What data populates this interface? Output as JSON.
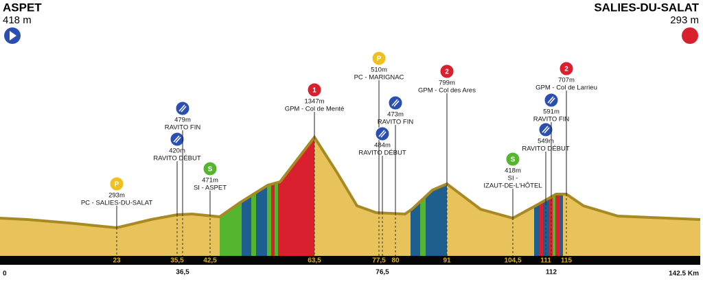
{
  "header": {
    "start_name": "ASPET",
    "start_alt": "418 m",
    "finish_name": "SALIES-DU-SALAT",
    "finish_alt": "293 m"
  },
  "axis": {
    "start": "0",
    "end": "142.5 Km"
  },
  "points": [
    {
      "icon": "P",
      "alt": "293m",
      "label": "PC - SALIES-DU-SALAT",
      "km": "23"
    },
    {
      "alt": "420m",
      "label": "RAVITO DÉBUT",
      "km": "35,5"
    },
    {
      "alt": "479m",
      "label": "RAVITO FIN",
      "km": "36,5"
    },
    {
      "icon": "S",
      "alt": "471m",
      "label": "SI - ASPET",
      "km": "42,5"
    },
    {
      "icon": "1",
      "alt": "1347m",
      "label": "GPM - Col de Menté",
      "km": "63,5"
    },
    {
      "icon": "P",
      "alt": "510m",
      "label": "PC - MARIGNAC",
      "km": "77,5"
    },
    {
      "alt": "484m",
      "label": "RAVITO DÉBUT",
      "km": "76,5"
    },
    {
      "alt": "473m",
      "label": "RAVITO FIN",
      "km": "80"
    },
    {
      "icon": "2",
      "alt": "799m",
      "label": "GPM - Col des Ares",
      "km": "91"
    },
    {
      "icon": "S",
      "alt": "418m",
      "label": "SI -",
      "label2": "IZAUT-DE-L'HÔTEL",
      "km": "104,5"
    },
    {
      "alt": "549m",
      "label": "RAVITO DÉBUT",
      "km": "111"
    },
    {
      "alt": "591m",
      "label": "RAVITO FIN",
      "km": "112"
    },
    {
      "icon": "2",
      "alt": "707m",
      "label": "GPM - Col de Larrieu",
      "km": "115"
    }
  ]
}
